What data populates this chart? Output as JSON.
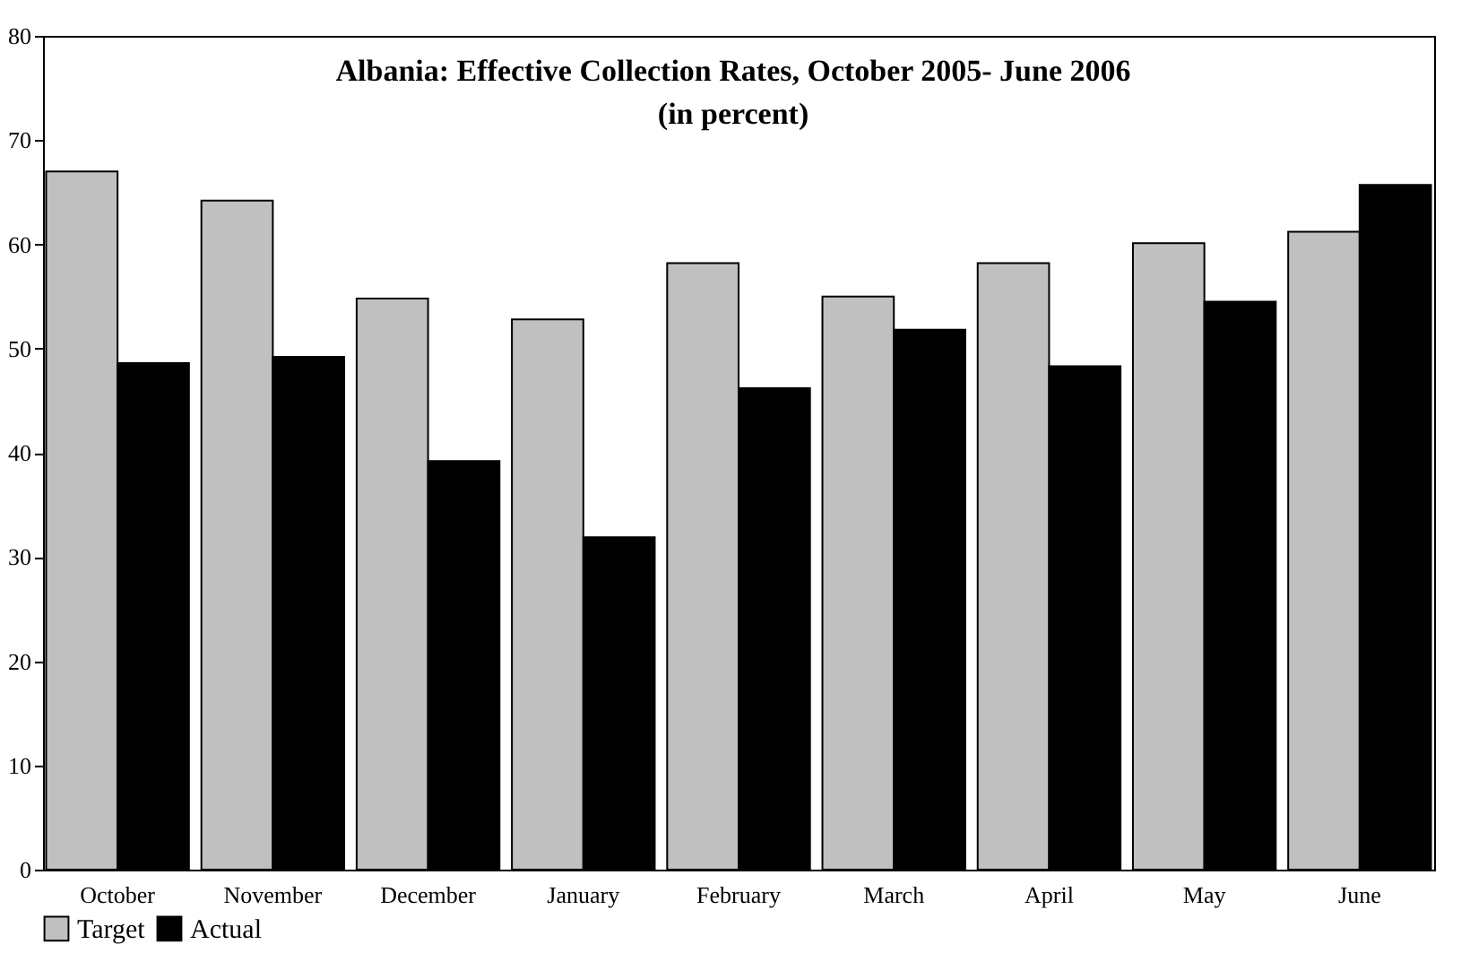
{
  "chart_data": {
    "type": "bar",
    "title": "Albania: Effective Collection Rates, October 2005- June 2006",
    "subtitle": "(in percent)",
    "categories": [
      "October",
      "November",
      "December",
      "January",
      "February",
      "March",
      "April",
      "May",
      "June"
    ],
    "series": [
      {
        "name": "Target",
        "color": "#c0c0c0",
        "values": [
          67,
          64.2,
          54.8,
          52.8,
          58.2,
          55,
          58.2,
          60.1,
          61.2
        ]
      },
      {
        "name": "Actual",
        "color": "#000000",
        "values": [
          48.6,
          49.2,
          39.2,
          31.9,
          46.2,
          51.8,
          48.3,
          54.5,
          65.7
        ]
      }
    ],
    "ylim": [
      0,
      80
    ],
    "yticks": [
      0,
      10,
      20,
      30,
      40,
      50,
      60,
      70,
      80
    ],
    "grid": false,
    "legend": "bottom"
  }
}
